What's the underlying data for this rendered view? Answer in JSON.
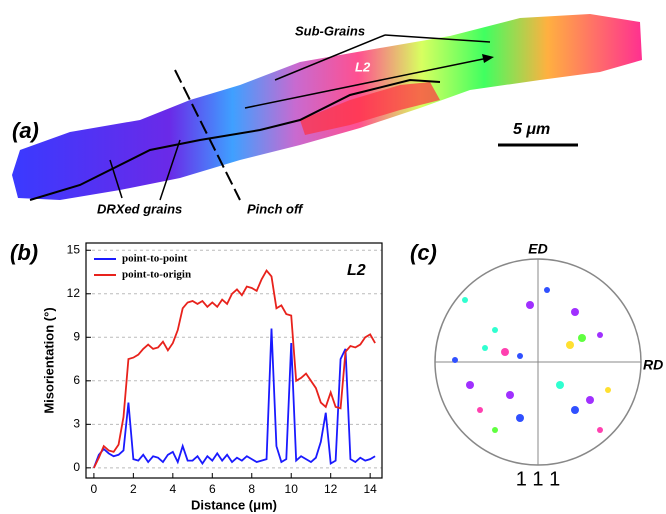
{
  "panel_a": {
    "label": "(a)",
    "sub_grains": "Sub-Grains",
    "line_label": "L2",
    "drx": "DRXed grains",
    "pinch": "Pinch off",
    "scale_bar": "5 μm"
  },
  "chart_data": {
    "type": "line",
    "label": "(b)",
    "annotation": "L2",
    "x_label": "Distance (μm)",
    "y_label": "Misorientation (°)",
    "x": [
      0,
      0.25,
      0.5,
      0.75,
      1,
      1.25,
      1.5,
      1.75,
      2,
      2.25,
      2.5,
      2.75,
      3,
      3.25,
      3.5,
      3.75,
      4,
      4.25,
      4.5,
      4.75,
      5,
      5.25,
      5.5,
      5.75,
      6,
      6.25,
      6.5,
      6.75,
      7,
      7.25,
      7.5,
      7.75,
      8,
      8.25,
      8.5,
      8.75,
      9,
      9.25,
      9.5,
      9.75,
      10,
      10.25,
      10.5,
      10.75,
      11,
      11.25,
      11.5,
      11.75,
      12,
      12.25,
      12.5,
      12.75,
      13,
      13.25,
      13.5,
      13.75,
      14,
      14.25
    ],
    "series": [
      {
        "name": "point-to-point",
        "color": "#1a1aff",
        "values": [
          0,
          0.9,
          1.3,
          1.0,
          0.8,
          0.9,
          1.2,
          4.5,
          0.6,
          0.5,
          0.9,
          0.4,
          0.8,
          0.7,
          0.4,
          0.9,
          1.1,
          0.4,
          1.5,
          0.5,
          0.5,
          0.8,
          0.3,
          0.8,
          0.5,
          1.0,
          0.5,
          0.9,
          0.4,
          0.7,
          0.5,
          0.8,
          0.6,
          0.4,
          0.5,
          0.6,
          9.6,
          1.5,
          0.4,
          0.6,
          8.6,
          0.5,
          0.8,
          0.6,
          0.4,
          0.7,
          1.8,
          3.8,
          0.3,
          0.5,
          7.5,
          8.2,
          0.6,
          0.4,
          0.7,
          0.5,
          0.6,
          0.8
        ]
      },
      {
        "name": "point-to-origin",
        "color": "#e8221c",
        "values": [
          0,
          0.7,
          1.5,
          1.2,
          1.1,
          1.6,
          3.5,
          7.5,
          7.6,
          7.8,
          8.2,
          8.5,
          8.2,
          8.3,
          8.7,
          8.1,
          8.6,
          9.5,
          11.0,
          11.4,
          11.5,
          11.3,
          11.5,
          11.1,
          11.4,
          11.1,
          11.6,
          11.3,
          12.0,
          12.3,
          11.9,
          12.5,
          12.4,
          12.2,
          13.0,
          13.6,
          13.2,
          11.0,
          11.2,
          10.6,
          10.5,
          6.0,
          6.2,
          6.5,
          6.0,
          5.5,
          4.5,
          4.2,
          5.2,
          4.2,
          4.1,
          8.0,
          8.4,
          8.3,
          8.5,
          9.0,
          9.2,
          8.6
        ]
      }
    ],
    "xlim": [
      -0.4,
      14.6
    ],
    "xticks": [
      0,
      2,
      4,
      6,
      8,
      10,
      12,
      14
    ],
    "ylim": [
      -0.7,
      15.5
    ],
    "yticks": [
      0,
      3,
      6,
      9,
      12,
      15
    ],
    "grid": true,
    "legend": "top-left"
  },
  "panel_c": {
    "label": "(c)",
    "top_axis": "ED",
    "right_axis": "RD",
    "plane": "1 1 1"
  }
}
